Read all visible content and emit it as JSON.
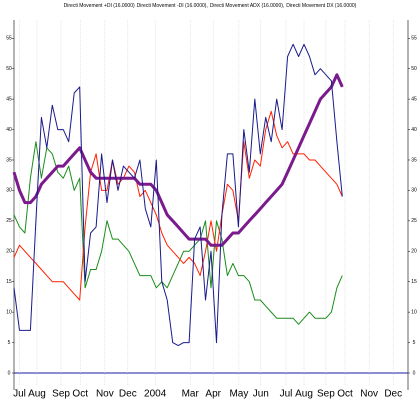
{
  "chart_data": {
    "type": "line",
    "x": [
      0,
      1,
      2,
      3,
      4,
      5,
      6,
      7,
      8,
      9,
      10,
      11,
      12,
      13,
      14,
      15,
      16,
      17,
      18,
      19,
      20,
      21,
      22,
      23,
      24,
      25,
      26,
      27,
      28,
      29,
      30,
      31,
      32,
      33,
      34,
      35,
      36,
      37,
      38,
      39,
      40,
      41,
      42,
      43,
      44,
      45,
      46,
      47,
      48,
      49,
      50,
      51,
      52,
      53,
      54,
      55,
      56,
      57,
      58,
      59,
      60
    ],
    "xlim": [
      0,
      72
    ],
    "xticks": [
      {
        "value": 1,
        "label": "Jul"
      },
      {
        "value": 4.2,
        "label": "Aug"
      },
      {
        "value": 8.6,
        "label": "Sep"
      },
      {
        "value": 12.1,
        "label": "Oct"
      },
      {
        "value": 16.6,
        "label": "Nov"
      },
      {
        "value": 20.8,
        "label": "Dec"
      },
      {
        "value": 25.8,
        "label": "2004"
      },
      {
        "value": 32.2,
        "label": "Mar"
      },
      {
        "value": 36.4,
        "label": "Apr"
      },
      {
        "value": 41.1,
        "label": "May"
      },
      {
        "value": 45.1,
        "label": "Jun"
      },
      {
        "value": 49.7,
        "label": "Jul"
      },
      {
        "value": 53,
        "label": "Aug"
      },
      {
        "value": 57,
        "label": "Sep"
      },
      {
        "value": 60.5,
        "label": "Oct"
      },
      {
        "value": 64.9,
        "label": "Nov"
      },
      {
        "value": 69.3,
        "label": "Dec"
      }
    ],
    "ylim": [
      0,
      58
    ],
    "yticks": [
      0,
      5,
      10,
      15,
      20,
      25,
      30,
      35,
      40,
      45,
      50,
      55
    ],
    "grid": true,
    "series": [
      {
        "name": "Directi Movement +DI (16.0000)",
        "color": "#1a8c1a",
        "values": [
          26,
          24,
          23,
          32,
          38,
          32,
          37,
          36,
          33,
          32,
          34,
          30,
          32,
          14,
          17,
          17,
          20,
          25,
          22,
          22,
          21,
          20,
          18,
          16,
          16,
          16,
          14,
          15,
          14,
          16,
          18,
          20,
          20,
          21,
          22,
          25,
          14,
          25,
          22,
          16,
          18,
          16,
          16,
          15,
          12,
          12,
          11,
          10,
          9,
          9,
          9,
          9,
          8,
          9,
          10,
          9,
          9,
          9,
          10,
          14,
          16
        ]
      },
      {
        "name": "Directi Movement -DI (16.0000),",
        "color": "#ff2000",
        "values": [
          19,
          21,
          20,
          19,
          18,
          17,
          16,
          15,
          15,
          15,
          14,
          13,
          12,
          24,
          33,
          36,
          30,
          30,
          35,
          31,
          32,
          34,
          33,
          29,
          30,
          28,
          26,
          23,
          21,
          20,
          19,
          18,
          19,
          18,
          16,
          20,
          25,
          20,
          26,
          31,
          30,
          25,
          38,
          32,
          35,
          34,
          40,
          43,
          39,
          37,
          38,
          36,
          36,
          36,
          35,
          35,
          34,
          33,
          32,
          31,
          29
        ]
      },
      {
        "name": "Directi Movement ADX (16.0000),",
        "color": "#7b1a8c",
        "values": [
          33,
          30,
          28,
          28,
          29,
          31,
          32,
          33,
          34,
          34,
          35,
          36,
          37,
          35,
          33,
          32,
          32,
          32,
          32,
          32,
          32,
          32,
          32,
          31,
          31,
          31,
          30,
          28,
          26,
          25,
          24,
          23,
          22,
          22,
          22,
          22,
          21,
          21,
          21,
          22,
          23,
          23,
          24,
          25,
          26,
          27,
          28,
          29,
          30,
          31,
          33,
          35,
          37,
          39,
          41,
          43,
          45,
          46,
          47,
          49,
          47
        ]
      },
      {
        "name": "Directi Movement DX (16.0000)",
        "color": "#1a1a8c",
        "values": [
          14,
          7,
          7,
          7,
          25,
          42,
          37,
          44,
          40,
          40,
          38,
          46,
          47,
          15,
          23,
          24,
          36,
          28,
          35,
          30,
          34,
          33,
          32,
          35,
          27,
          24,
          35,
          15,
          12,
          5,
          4.5,
          5,
          5,
          22,
          24,
          12,
          20,
          5,
          26,
          36,
          36,
          24,
          40,
          33,
          45,
          36,
          42,
          38,
          45,
          40,
          52,
          54,
          52,
          54,
          52,
          49,
          50,
          49,
          48,
          38,
          29
        ]
      }
    ]
  }
}
